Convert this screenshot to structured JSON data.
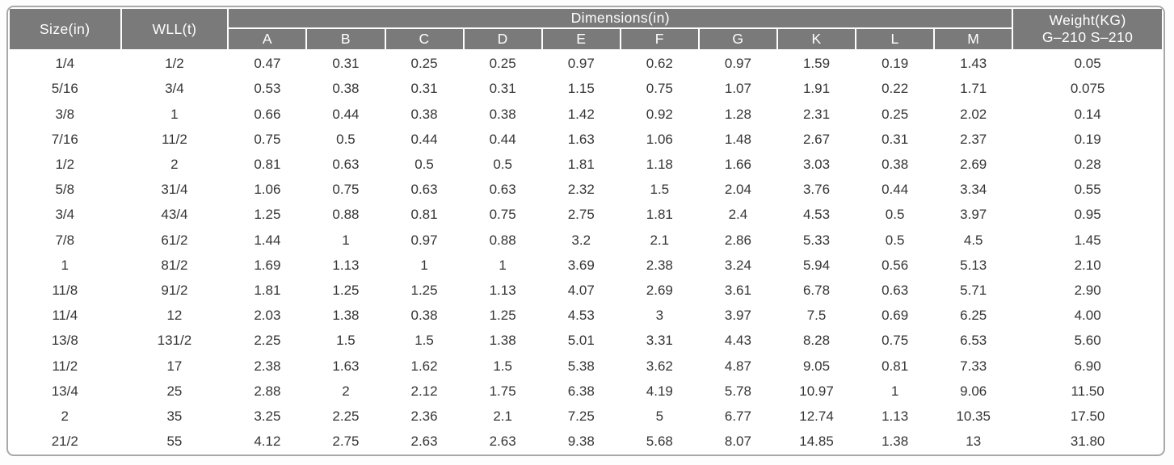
{
  "table": {
    "headers": {
      "size": "Size(in)",
      "wll": "WLL(t)",
      "dimensions_group": "Dimensions(in)",
      "dimension_cols": [
        "A",
        "B",
        "C",
        "D",
        "E",
        "F",
        "G",
        "K",
        "L",
        "M"
      ],
      "weight_line1": "Weight(KG)",
      "weight_line2": "G–210 S–210"
    },
    "rows": [
      [
        "1/4",
        "1/2",
        "0.47",
        "0.31",
        "0.25",
        "0.25",
        "0.97",
        "0.62",
        "0.97",
        "1.59",
        "0.19",
        "1.43",
        "0.05"
      ],
      [
        "5/16",
        "3/4",
        "0.53",
        "0.38",
        "0.31",
        "0.31",
        "1.15",
        "0.75",
        "1.07",
        "1.91",
        "0.22",
        "1.71",
        "0.075"
      ],
      [
        "3/8",
        "1",
        "0.66",
        "0.44",
        "0.38",
        "0.38",
        "1.42",
        "0.92",
        "1.28",
        "2.31",
        "0.25",
        "2.02",
        "0.14"
      ],
      [
        "7/16",
        "11/2",
        "0.75",
        "0.5",
        "0.44",
        "0.44",
        "1.63",
        "1.06",
        "1.48",
        "2.67",
        "0.31",
        "2.37",
        "0.19"
      ],
      [
        "1/2",
        "2",
        "0.81",
        "0.63",
        "0.5",
        "0.5",
        "1.81",
        "1.18",
        "1.66",
        "3.03",
        "0.38",
        "2.69",
        "0.28"
      ],
      [
        "5/8",
        "31/4",
        "1.06",
        "0.75",
        "0.63",
        "0.63",
        "2.32",
        "1.5",
        "2.04",
        "3.76",
        "0.44",
        "3.34",
        "0.55"
      ],
      [
        "3/4",
        "43/4",
        "1.25",
        "0.88",
        "0.81",
        "0.75",
        "2.75",
        "1.81",
        "2.4",
        "4.53",
        "0.5",
        "3.97",
        "0.95"
      ],
      [
        "7/8",
        "61/2",
        "1.44",
        "1",
        "0.97",
        "0.88",
        "3.2",
        "2.1",
        "2.86",
        "5.33",
        "0.5",
        "4.5",
        "1.45"
      ],
      [
        "1",
        "81/2",
        "1.69",
        "1.13",
        "1",
        "1",
        "3.69",
        "2.38",
        "3.24",
        "5.94",
        "0.56",
        "5.13",
        "2.10"
      ],
      [
        "11/8",
        "91/2",
        "1.81",
        "1.25",
        "1.25",
        "1.13",
        "4.07",
        "2.69",
        "3.61",
        "6.78",
        "0.63",
        "5.71",
        "2.90"
      ],
      [
        "11/4",
        "12",
        "2.03",
        "1.38",
        "0.38",
        "1.25",
        "4.53",
        "3",
        "3.97",
        "7.5",
        "0.69",
        "6.25",
        "4.00"
      ],
      [
        "13/8",
        "131/2",
        "2.25",
        "1.5",
        "1.5",
        "1.38",
        "5.01",
        "3.31",
        "4.43",
        "8.28",
        "0.75",
        "6.53",
        "5.60"
      ],
      [
        "11/2",
        "17",
        "2.38",
        "1.63",
        "1.62",
        "1.5",
        "5.38",
        "3.62",
        "4.87",
        "9.05",
        "0.81",
        "7.33",
        "6.90"
      ],
      [
        "13/4",
        "25",
        "2.88",
        "2",
        "2.12",
        "1.75",
        "6.38",
        "4.19",
        "5.78",
        "10.97",
        "1",
        "9.06",
        "11.50"
      ],
      [
        "2",
        "35",
        "3.25",
        "2.25",
        "2.36",
        "2.1",
        "7.25",
        "5",
        "6.77",
        "12.74",
        "1.13",
        "10.35",
        "17.50"
      ],
      [
        "21/2",
        "55",
        "4.12",
        "2.75",
        "2.63",
        "2.63",
        "9.38",
        "5.68",
        "8.07",
        "14.85",
        "1.38",
        "13",
        "31.80"
      ]
    ],
    "column_keys": [
      "size",
      "wll",
      "a",
      "b",
      "c",
      "d",
      "e",
      "f",
      "g",
      "k",
      "l",
      "m",
      "weight"
    ],
    "colors": {
      "header_bg": "#7a7a7a",
      "header_text": "#ffffff",
      "body_text": "#353535",
      "frame_border": "#a8a8a8",
      "body_bg": "#ffffff"
    }
  }
}
